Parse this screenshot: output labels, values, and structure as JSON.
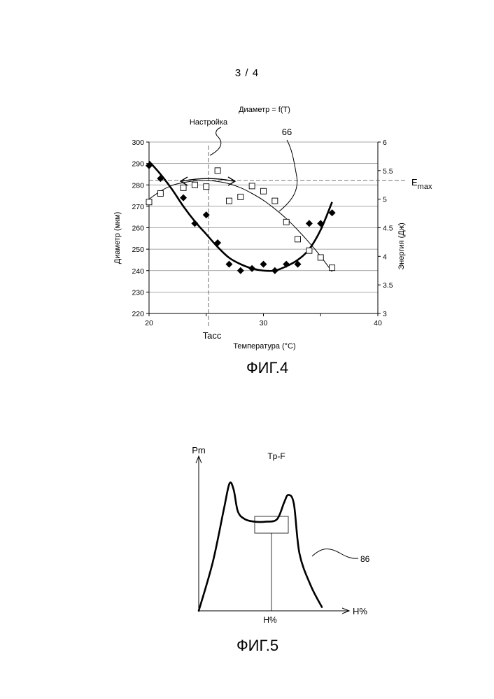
{
  "page_number": "3 / 4",
  "figure4": {
    "caption": "ФИГ.4",
    "label_tacc": "Tacc",
    "label_emax": "E",
    "label_emax_sub": "max",
    "label_66": "66",
    "label_setting": "Настройка",
    "chart_data": {
      "type": "scatter",
      "title": "Диаметр = f(T)",
      "xlabel": "Температура (°C)",
      "ylabel": "Диаметр (мкм)",
      "y2label": "Энергия (Дж)",
      "xlim": [
        20,
        40
      ],
      "ylim": [
        220,
        300
      ],
      "y2lim": [
        3,
        6
      ],
      "x_ticks": [
        "20",
        "30",
        "40"
      ],
      "y_ticks": [
        "220",
        "230",
        "240",
        "250",
        "260",
        "270",
        "280",
        "290",
        "300"
      ],
      "y2_ticks": [
        "3",
        "3.5",
        "4",
        "4.5",
        "5",
        "5.5",
        "6"
      ],
      "grid": "horizontal",
      "series": [
        {
          "marker": "filled-diamond",
          "axis": "left",
          "x": [
            20,
            21,
            23,
            24,
            25,
            26,
            27,
            28,
            29,
            30,
            31,
            32,
            33,
            34,
            35,
            36
          ],
          "y": [
            289,
            283,
            274,
            262,
            266,
            253,
            243,
            240,
            241,
            243,
            240,
            243,
            243,
            262,
            262,
            267
          ]
        },
        {
          "marker": "hollow-square",
          "axis": "right",
          "x": [
            20,
            21,
            23,
            24,
            25,
            26,
            27,
            28,
            29,
            30,
            31,
            32,
            33,
            34,
            35,
            36
          ],
          "y": [
            4.95,
            5.1,
            5.2,
            5.25,
            5.22,
            5.5,
            4.97,
            5.04,
            5.23,
            5.14,
            4.97,
            4.6,
            4.3,
            4.1,
            3.98,
            3.8
          ]
        }
      ],
      "trend_curves": [
        {
          "axis": "left",
          "style": "thick",
          "x": [
            20,
            21,
            22,
            23,
            24,
            25,
            26,
            27,
            28,
            29,
            30,
            31,
            32,
            33,
            34,
            35,
            36
          ],
          "y": [
            291,
            285,
            278,
            270,
            263,
            257,
            251,
            246,
            243,
            241,
            240,
            240,
            242,
            245,
            250,
            259,
            272
          ]
        },
        {
          "axis": "right",
          "style": "thin",
          "x": [
            20,
            21,
            22,
            23,
            24,
            25,
            26,
            27,
            28,
            29,
            30,
            31,
            32,
            33,
            34,
            35,
            36
          ],
          "y": [
            5.0,
            5.14,
            5.24,
            5.29,
            5.32,
            5.33,
            5.31,
            5.27,
            5.2,
            5.1,
            4.98,
            4.83,
            4.66,
            4.46,
            4.24,
            4.0,
            3.73
          ]
        }
      ],
      "reference_lines": {
        "tacc_x": 25.2,
        "emax_y2": 5.33
      }
    }
  },
  "figure5": {
    "caption": "ФИГ.5",
    "title": "Tp-F",
    "y_axis_label": "Pm",
    "x_axis_label": "H%",
    "x_marker_label": "H%",
    "curve_label": "86",
    "chart_data": {
      "type": "line",
      "title": "Tp-F",
      "xlabel": "H%",
      "ylabel": "Pm",
      "series": [
        {
          "name": "86",
          "x": [
            0,
            10,
            18,
            22,
            25,
            28,
            33,
            40,
            48,
            56,
            61,
            64,
            68,
            72,
            80,
            88
          ],
          "y": [
            0,
            38,
            80,
            100,
            95,
            78,
            72,
            70,
            70,
            72,
            85,
            91,
            84,
            45,
            20,
            3
          ]
        }
      ]
    }
  }
}
